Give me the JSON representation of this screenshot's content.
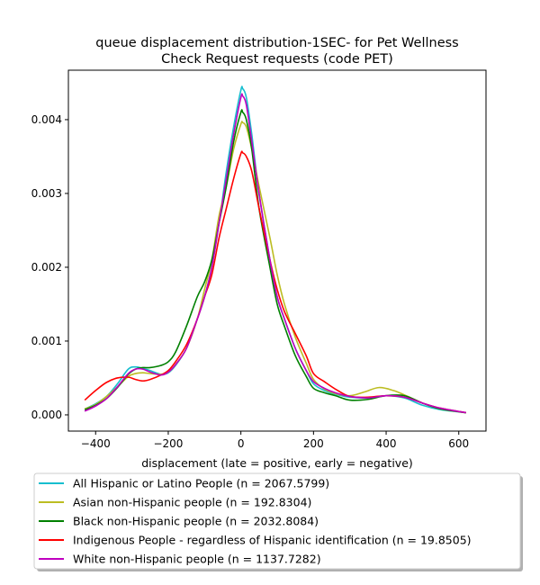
{
  "chart_data": {
    "type": "line",
    "title_line1": "queue displacement distribution-1SEC-  for Pet Wellness",
    "title_line2": "Check Request  requests (code PET)",
    "xlabel": "displacement (late = positive, early = negative)",
    "ylabel": "",
    "xlim": [
      -475,
      675
    ],
    "ylim": [
      -0.00022,
      0.00467
    ],
    "xticks": [
      -400,
      -200,
      0,
      200,
      400,
      600
    ],
    "xtick_labels": [
      "−400",
      "−200",
      "0",
      "200",
      "400",
      "600"
    ],
    "yticks": [
      0.0,
      0.001,
      0.002,
      0.003,
      0.004
    ],
    "ytick_labels": [
      "0.000",
      "0.001",
      "0.002",
      "0.003",
      "0.004"
    ],
    "grid": false,
    "legend_position": "below",
    "series": [
      {
        "name": "All Hispanic or Latino People (n = 2067.5799)",
        "color": "#17becf",
        "x": [
          -430,
          -400,
          -370,
          -340,
          -310,
          -290,
          -270,
          -250,
          -220,
          -200,
          -180,
          -150,
          -120,
          -100,
          -80,
          -60,
          -40,
          -20,
          0,
          5,
          15,
          30,
          50,
          80,
          100,
          120,
          150,
          180,
          200,
          230,
          260,
          300,
          350,
          400,
          450,
          500,
          550,
          620
        ],
        "y": [
          8e-05,
          0.00015,
          0.00025,
          0.00042,
          0.00062,
          0.00065,
          0.00063,
          0.0006,
          0.00055,
          0.00057,
          0.00067,
          0.0009,
          0.0013,
          0.0016,
          0.002,
          0.0026,
          0.0033,
          0.0039,
          0.0044,
          0.00442,
          0.0043,
          0.0038,
          0.003,
          0.0021,
          0.0016,
          0.0013,
          0.0009,
          0.0006,
          0.00042,
          0.00033,
          0.00028,
          0.00024,
          0.00023,
          0.00026,
          0.00023,
          0.00013,
          7e-05,
          3e-05
        ]
      },
      {
        "name": "Asian non-Hispanic people (n = 192.8304)",
        "color": "#bcbd22",
        "x": [
          -430,
          -400,
          -370,
          -340,
          -310,
          -290,
          -270,
          -250,
          -220,
          -200,
          -180,
          -150,
          -120,
          -100,
          -80,
          -60,
          -40,
          -20,
          0,
          5,
          15,
          30,
          50,
          80,
          100,
          120,
          150,
          180,
          200,
          230,
          260,
          300,
          340,
          380,
          420,
          460,
          500,
          550,
          620
        ],
        "y": [
          8e-05,
          0.00014,
          0.00025,
          0.00038,
          0.00052,
          0.00056,
          0.00057,
          0.00056,
          0.00055,
          0.00058,
          0.00068,
          0.0009,
          0.0013,
          0.0017,
          0.0021,
          0.0027,
          0.0031,
          0.0036,
          0.00394,
          0.00396,
          0.0039,
          0.0036,
          0.0031,
          0.0024,
          0.0019,
          0.0015,
          0.00105,
          0.0007,
          0.00048,
          0.00035,
          0.00029,
          0.00026,
          0.00031,
          0.00037,
          0.00033,
          0.00025,
          0.00016,
          8e-05,
          3e-05
        ]
      },
      {
        "name": "Black non-Hispanic people (n = 2032.8084)",
        "color": "#008000",
        "x": [
          -430,
          -400,
          -370,
          -340,
          -310,
          -290,
          -270,
          -250,
          -220,
          -200,
          -180,
          -150,
          -120,
          -100,
          -80,
          -60,
          -40,
          -20,
          0,
          5,
          15,
          30,
          50,
          80,
          100,
          120,
          150,
          180,
          200,
          230,
          260,
          300,
          350,
          400,
          450,
          500,
          550,
          620
        ],
        "y": [
          7e-05,
          0.00013,
          0.00022,
          0.00037,
          0.00055,
          0.00062,
          0.00064,
          0.00064,
          0.00067,
          0.00072,
          0.00085,
          0.0012,
          0.0016,
          0.0018,
          0.0021,
          0.0026,
          0.0031,
          0.0037,
          0.0041,
          0.0041,
          0.004,
          0.0036,
          0.0028,
          0.002,
          0.0015,
          0.0012,
          0.0008,
          0.00052,
          0.00036,
          0.0003,
          0.00026,
          0.0002,
          0.00021,
          0.00026,
          0.00026,
          0.00016,
          8e-05,
          3e-05
        ]
      },
      {
        "name": "Indigenous People - regardless of Hispanic identification (n = 19.8505)",
        "color": "#ff0000",
        "x": [
          -430,
          -400,
          -370,
          -340,
          -310,
          -290,
          -270,
          -250,
          -220,
          -200,
          -180,
          -150,
          -120,
          -100,
          -80,
          -60,
          -40,
          -20,
          0,
          5,
          15,
          30,
          50,
          80,
          100,
          120,
          150,
          180,
          200,
          230,
          260,
          300,
          350,
          400,
          450,
          500,
          550,
          620
        ],
        "y": [
          0.0002,
          0.00033,
          0.00044,
          0.0005,
          0.00051,
          0.00048,
          0.00046,
          0.00048,
          0.00054,
          0.0006,
          0.00072,
          0.00095,
          0.0013,
          0.0016,
          0.0019,
          0.0024,
          0.0028,
          0.0032,
          0.00354,
          0.00355,
          0.0035,
          0.0033,
          0.0028,
          0.0021,
          0.0017,
          0.0014,
          0.0011,
          0.0008,
          0.00056,
          0.00045,
          0.00035,
          0.00025,
          0.00024,
          0.00026,
          0.00024,
          0.00016,
          9e-05,
          3e-05
        ]
      },
      {
        "name": "White non-Hispanic people (n = 1137.7282)",
        "color": "#bf00bf",
        "x": [
          -430,
          -400,
          -370,
          -340,
          -310,
          -290,
          -270,
          -250,
          -220,
          -200,
          -180,
          -150,
          -120,
          -100,
          -80,
          -60,
          -40,
          -20,
          0,
          5,
          15,
          30,
          50,
          80,
          100,
          120,
          150,
          180,
          200,
          230,
          260,
          300,
          350,
          400,
          450,
          500,
          550,
          620
        ],
        "y": [
          5e-05,
          0.00012,
          0.00022,
          0.00038,
          0.00056,
          0.00062,
          0.00062,
          0.00058,
          0.00054,
          0.00058,
          0.00068,
          0.0009,
          0.0013,
          0.0016,
          0.002,
          0.0026,
          0.0032,
          0.0038,
          0.0043,
          0.00432,
          0.0042,
          0.0037,
          0.003,
          0.0021,
          0.0016,
          0.0013,
          0.0009,
          0.0006,
          0.00045,
          0.00036,
          0.0003,
          0.00025,
          0.00023,
          0.00026,
          0.00024,
          0.00016,
          9e-05,
          3e-05
        ]
      }
    ]
  }
}
